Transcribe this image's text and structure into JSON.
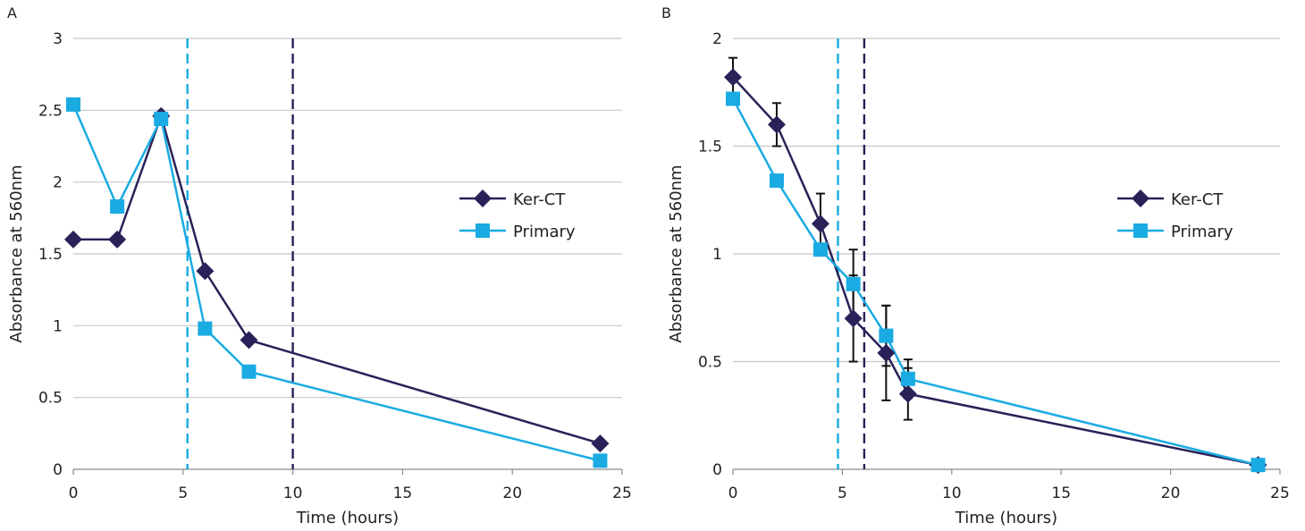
{
  "chart_data": [
    {
      "panel_label": "A",
      "type": "line",
      "xlabel": "Time (hours)",
      "ylabel": "Absorbance at 560nm",
      "xlim": [
        0,
        25
      ],
      "ylim": [
        0,
        3
      ],
      "xticks": [
        "0",
        "5",
        "10",
        "15",
        "20",
        "25"
      ],
      "yticks": [
        "0",
        "0.5",
        "1",
        "1.5",
        "2",
        "2.5",
        "3"
      ],
      "grid": "horizontal",
      "legend_position": "right",
      "vlines": [
        {
          "x": 5.2,
          "color": "#1aabe2",
          "style": "dashed"
        },
        {
          "x": 10,
          "color": "#2a2158",
          "style": "dashed"
        }
      ],
      "series": [
        {
          "name": "Ker-CT",
          "color": "#2a2158",
          "marker": "diamond",
          "x": [
            0,
            2,
            4,
            6,
            8,
            24
          ],
          "y": [
            1.6,
            1.6,
            2.46,
            1.38,
            0.9,
            0.18
          ]
        },
        {
          "name": "Primary",
          "color": "#1aabe2",
          "marker": "square",
          "x": [
            0,
            2,
            4,
            6,
            8,
            24
          ],
          "y": [
            2.54,
            1.83,
            2.44,
            0.98,
            0.68,
            0.06
          ]
        }
      ]
    },
    {
      "panel_label": "B",
      "type": "line",
      "xlabel": "Time (hours)",
      "ylabel": "Absorbance at 560nm",
      "xlim": [
        0,
        25
      ],
      "ylim": [
        0,
        2
      ],
      "xticks": [
        "0",
        "5",
        "10",
        "15",
        "20",
        "25"
      ],
      "yticks": [
        "0",
        "0.5",
        "1",
        "1.5",
        "2"
      ],
      "grid": "horizontal",
      "legend_position": "right",
      "vlines": [
        {
          "x": 4.8,
          "color": "#1aabe2",
          "style": "dashed"
        },
        {
          "x": 6,
          "color": "#2a2158",
          "style": "dashed"
        }
      ],
      "series": [
        {
          "name": "Ker-CT",
          "color": "#2a2158",
          "marker": "diamond",
          "x": [
            0,
            2,
            4,
            5.5,
            7,
            8,
            24
          ],
          "y": [
            1.82,
            1.6,
            1.14,
            0.7,
            0.54,
            0.35,
            0.02
          ],
          "err": [
            0.09,
            0.1,
            0.14,
            0.2,
            0.22,
            0.12,
            0.0
          ]
        },
        {
          "name": "Primary",
          "color": "#1aabe2",
          "marker": "square",
          "x": [
            0,
            2,
            4,
            5.5,
            7,
            8,
            24
          ],
          "y": [
            1.72,
            1.34,
            1.02,
            0.86,
            0.62,
            0.42,
            0.02
          ],
          "err": [
            0.0,
            0.0,
            0.0,
            0.16,
            0.14,
            0.09,
            0.0
          ]
        }
      ]
    }
  ]
}
